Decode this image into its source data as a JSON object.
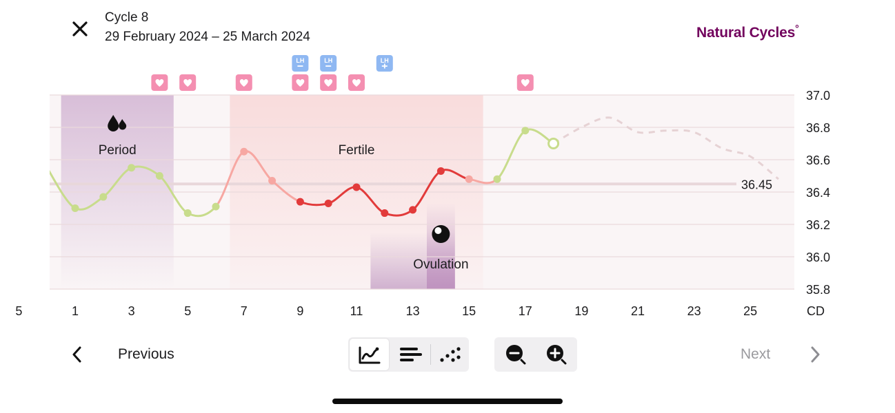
{
  "header": {
    "cycle_title": "Cycle 8",
    "cycle_dates": "29 February 2024 – 25 March 2024",
    "brand": "Natural Cycles",
    "brand_mark": "°"
  },
  "chart_data": {
    "type": "line",
    "x_axis_unit": "CD",
    "x_ticks": [
      "5",
      "1",
      "3",
      "5",
      "7",
      "9",
      "11",
      "13",
      "15",
      "17",
      "19",
      "21",
      "23",
      "25"
    ],
    "y_ticks": [
      "37.0",
      "36.8",
      "36.6",
      "36.4",
      "36.2",
      "36.0",
      "35.8"
    ],
    "ylim": [
      35.8,
      37.0
    ],
    "cover_line": {
      "value": 36.45,
      "label": "36.45"
    },
    "phases": [
      {
        "name": "period",
        "label": "Period",
        "days": [
          1,
          4
        ]
      },
      {
        "name": "fertile",
        "label": "Fertile",
        "days": [
          7,
          15
        ]
      },
      {
        "name": "ovulation",
        "label": "Ovulation",
        "days": [
          12,
          14
        ]
      }
    ],
    "temperatures": [
      {
        "day": 0,
        "value": 36.55
      },
      {
        "day": 1,
        "value": 36.3,
        "status": "green"
      },
      {
        "day": 2,
        "value": 36.37,
        "status": "green"
      },
      {
        "day": 3,
        "value": 36.55,
        "status": "green"
      },
      {
        "day": 4,
        "value": 36.5,
        "status": "green"
      },
      {
        "day": 5,
        "value": 36.27,
        "status": "green"
      },
      {
        "day": 6,
        "value": 36.31,
        "status": "green"
      },
      {
        "day": 7,
        "value": 36.65,
        "status": "light-red"
      },
      {
        "day": 8,
        "value": 36.47,
        "status": "light-red"
      },
      {
        "day": 9,
        "value": 36.34,
        "status": "red"
      },
      {
        "day": 10,
        "value": 36.33,
        "status": "red"
      },
      {
        "day": 11,
        "value": 36.43,
        "status": "red"
      },
      {
        "day": 12,
        "value": 36.27,
        "status": "red"
      },
      {
        "day": 13,
        "value": 36.29,
        "status": "red"
      },
      {
        "day": 14,
        "value": 36.53,
        "status": "red"
      },
      {
        "day": 15,
        "value": 36.48,
        "status": "light-red"
      },
      {
        "day": 16,
        "value": 36.48,
        "status": "green"
      },
      {
        "day": 17,
        "value": 36.78,
        "status": "green"
      },
      {
        "day": 18,
        "value": 36.7,
        "status": "green",
        "today": true
      }
    ],
    "prediction": [
      {
        "day": 18,
        "value": 36.7
      },
      {
        "day": 19,
        "value": 36.8
      },
      {
        "day": 20,
        "value": 36.86
      },
      {
        "day": 21,
        "value": 36.77
      },
      {
        "day": 22,
        "value": 36.78
      },
      {
        "day": 23,
        "value": 36.77
      },
      {
        "day": 24,
        "value": 36.67
      },
      {
        "day": 25,
        "value": 36.62
      },
      {
        "day": 26,
        "value": 36.48
      }
    ],
    "sex_days": [
      4,
      5,
      7,
      9,
      10,
      11,
      17
    ],
    "lh_tests": [
      {
        "day": 9,
        "result": "negative"
      },
      {
        "day": 10,
        "result": "negative"
      },
      {
        "day": 12,
        "result": "positive"
      }
    ],
    "lh_label": "LH",
    "period_icon": "drops-icon",
    "ovulation_icon": "egg-icon"
  },
  "footer": {
    "previous_label": "Previous",
    "next_label": "Next",
    "view_modes": [
      "graph-icon",
      "list-icon",
      "dots-icon"
    ],
    "active_view": 0,
    "zoom_out_icon": "zoom-out-icon",
    "zoom_in_icon": "zoom-in-icon"
  },
  "colors": {
    "brand": "#72035d",
    "green": "#c8dc8c",
    "red": "#e23b3b",
    "light_red": "#f7a7a2",
    "heart": "#f48fb1",
    "lh": "#8fb8f2",
    "period_band": "#d9bfd9",
    "fertile_band": "#fae1e1"
  }
}
